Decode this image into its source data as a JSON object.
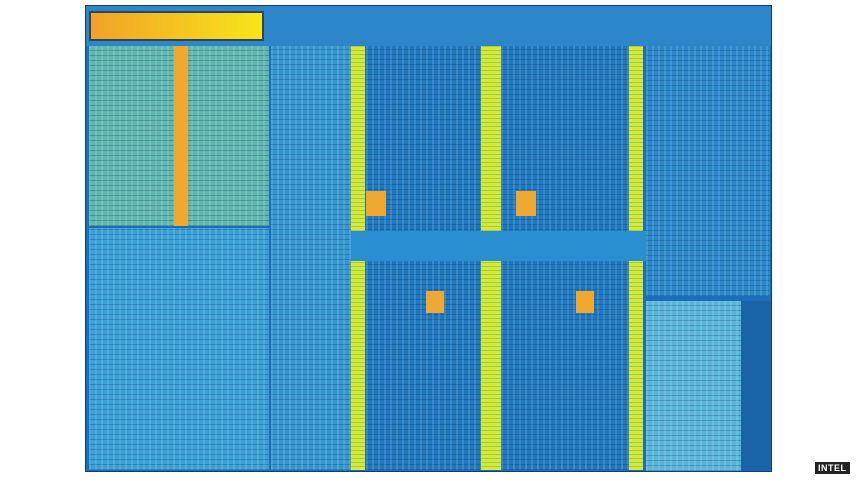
{
  "image": {
    "subject": "chip-die-photo",
    "colors": {
      "base": "#1a6fb8",
      "light": "#4fb3e0",
      "yellow": "#d7e83a",
      "orange": "#f0a930"
    }
  },
  "credit": "INTEL"
}
